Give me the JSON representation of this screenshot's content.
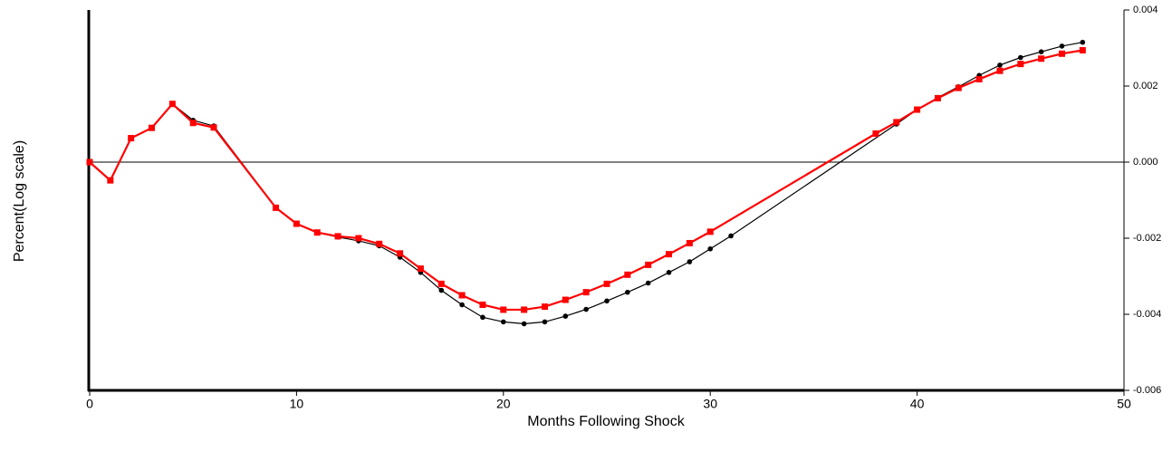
{
  "chart_data": {
    "type": "line",
    "x_label": "Months Following Shock",
    "y_label": "Percent(Log scale)",
    "xlim": [
      0,
      50
    ],
    "xticks": [
      0,
      10,
      20,
      30,
      40,
      50
    ],
    "ylim": [
      -0.006,
      0.004
    ],
    "yticks": [
      {
        "value": -0.006,
        "label": "-0.006"
      },
      {
        "value": -0.004,
        "label": "-0.004"
      },
      {
        "value": -0.002,
        "label": "-0.002"
      },
      {
        "value": 0,
        "label": "0.000"
      },
      {
        "value": 0.002,
        "label": "0.002"
      },
      {
        "value": 0.004,
        "label": "0.004"
      }
    ],
    "zero_line": true,
    "series": [
      {
        "color": "#000000",
        "marker": "circle",
        "x": [
          0,
          1,
          2,
          3,
          4,
          5,
          6,
          9,
          10,
          11,
          12,
          13,
          14,
          15,
          16,
          17,
          18,
          19,
          20,
          21,
          22,
          23,
          24,
          25,
          26,
          27,
          28,
          29,
          30,
          31,
          39,
          40,
          41,
          42,
          43,
          44,
          45,
          46,
          47,
          48
        ],
        "values": [
          0,
          -0.00048,
          0.00063,
          0.0009,
          0.00153,
          0.0011,
          0.00095,
          -0.0012,
          -0.00162,
          -0.00185,
          -0.00197,
          -0.00207,
          -0.0022,
          -0.0025,
          -0.0029,
          -0.00337,
          -0.00375,
          -0.00408,
          -0.0042,
          -0.00425,
          -0.0042,
          -0.00405,
          -0.00387,
          -0.00365,
          -0.00342,
          -0.00318,
          -0.0029,
          -0.00262,
          -0.00228,
          -0.00194,
          0.001,
          0.00138,
          0.0017,
          0.00198,
          0.00228,
          0.00255,
          0.00275,
          0.0029,
          0.00305,
          0.00315
        ]
      },
      {
        "color": "#ff0000",
        "marker": "square",
        "x": [
          0,
          1,
          2,
          3,
          4,
          5,
          6,
          9,
          10,
          11,
          12,
          13,
          14,
          15,
          16,
          17,
          18,
          19,
          20,
          21,
          22,
          23,
          24,
          25,
          26,
          27,
          28,
          29,
          30,
          38,
          39,
          40,
          41,
          42,
          43,
          44,
          45,
          46,
          47,
          48
        ],
        "values": [
          0,
          -0.00048,
          0.00063,
          0.0009,
          0.00153,
          0.00103,
          0.00091,
          -0.0012,
          -0.00162,
          -0.00185,
          -0.00195,
          -0.002,
          -0.00215,
          -0.0024,
          -0.0028,
          -0.0032,
          -0.0035,
          -0.00375,
          -0.00388,
          -0.00388,
          -0.0038,
          -0.00362,
          -0.00342,
          -0.0032,
          -0.00296,
          -0.0027,
          -0.00242,
          -0.00213,
          -0.00183,
          0.00075,
          0.00105,
          0.00138,
          0.00168,
          0.00195,
          0.00218,
          0.0024,
          0.00258,
          0.00272,
          0.00285,
          0.00294
        ]
      }
    ]
  }
}
